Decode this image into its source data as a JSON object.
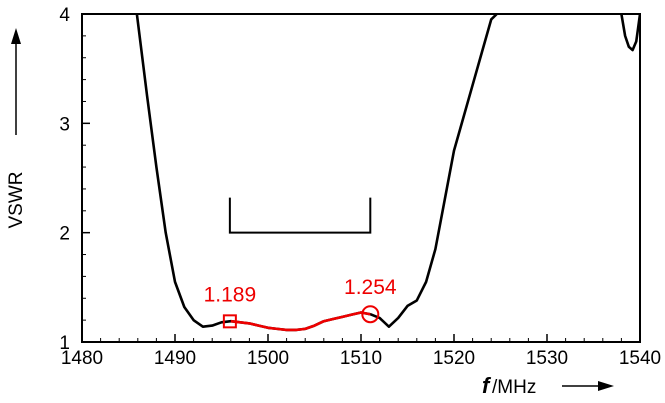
{
  "chart_data": {
    "type": "line",
    "xlabel_italic": "f",
    "xlabel_unit": "/MHz",
    "ylabel": "VSWR",
    "xlim": [
      1480,
      1540
    ],
    "ylim": [
      1,
      4
    ],
    "xticks": [
      1480,
      1490,
      1500,
      1510,
      1520,
      1530,
      1540
    ],
    "yticks": [
      1,
      2,
      3,
      4
    ],
    "colors": {
      "main": "#000000",
      "highlight": "#ee0000"
    },
    "series": [
      {
        "x": [
          1485.9,
          1487.0,
          1488.0,
          1489.0,
          1490.0,
          1491.0,
          1492.0,
          1493.0,
          1494.0,
          1495.0,
          1496.0,
          1497.0,
          1498.0,
          1499.0,
          1500.0,
          1501.0,
          1502.0,
          1503.0,
          1504.0,
          1505.0,
          1506.0,
          1507.0,
          1508.0,
          1509.0,
          1510.0,
          1511.0,
          1512.0,
          1513.0,
          1514.0,
          1515.0,
          1516.0,
          1517.0,
          1518.0,
          1519.0,
          1520.0,
          1521.0,
          1522.0,
          1523.0,
          1524.0,
          1524.6
        ],
        "y": [
          4.0,
          3.25,
          2.6,
          2.0,
          1.55,
          1.32,
          1.2,
          1.14,
          1.15,
          1.18,
          1.19,
          1.18,
          1.17,
          1.15,
          1.13,
          1.12,
          1.11,
          1.11,
          1.12,
          1.15,
          1.19,
          1.21,
          1.23,
          1.25,
          1.27,
          1.254,
          1.22,
          1.14,
          1.22,
          1.33,
          1.38,
          1.55,
          1.85,
          2.3,
          2.75,
          3.05,
          3.35,
          3.65,
          3.95,
          4.0
        ]
      },
      {
        "x": [
          1538.0,
          1538.4,
          1538.8,
          1539.2,
          1539.6,
          1540.0
        ],
        "y": [
          4.0,
          3.8,
          3.7,
          3.67,
          3.75,
          4.0
        ]
      }
    ],
    "highlight_range": [
      1496,
      1511
    ],
    "bandwidth_bracket": {
      "x": [
        1495.9,
        1511.0
      ],
      "y_bottom": 2.0,
      "y_top": 2.32
    },
    "annotations": [
      {
        "x": 1495.9,
        "y": 1.189,
        "label": "1.189",
        "marker": "square"
      },
      {
        "x": 1511.0,
        "y": 1.254,
        "label": "1.254",
        "marker": "circle"
      }
    ]
  }
}
